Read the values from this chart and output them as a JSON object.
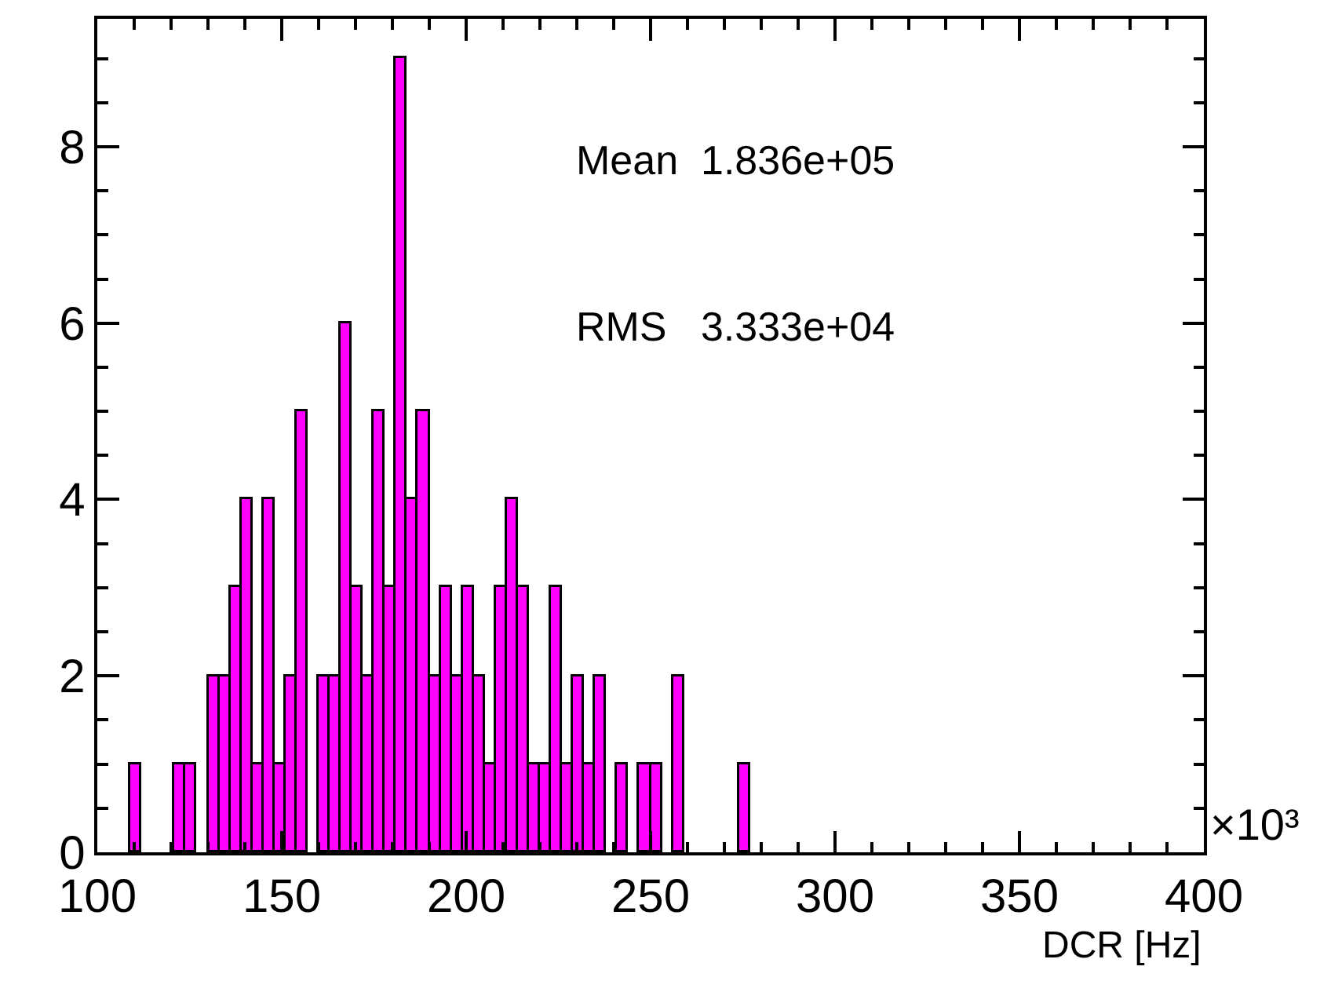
{
  "chart_data": {
    "type": "histogram",
    "xlabel": "DCR [Hz]",
    "bins": [
      100,
      103,
      106,
      109,
      112,
      115,
      118,
      121,
      124,
      127,
      130,
      133,
      136,
      139,
      142,
      145,
      148,
      151,
      154,
      157,
      160,
      163,
      166,
      169,
      172,
      175,
      178,
      181,
      184,
      187,
      190,
      193,
      196,
      199,
      202,
      205,
      208,
      211,
      214,
      217,
      220,
      223,
      226,
      229,
      232,
      235,
      238,
      241,
      244,
      247,
      250,
      253,
      256,
      259,
      262,
      265,
      268,
      271,
      274,
      277,
      280,
      283,
      286,
      289,
      292,
      295,
      298,
      301,
      304,
      307,
      310,
      313,
      316,
      319,
      322,
      325,
      328,
      331,
      334,
      337,
      340,
      343,
      346,
      349,
      352,
      355,
      358,
      361,
      364,
      367,
      370,
      373,
      376,
      379,
      382,
      385,
      388,
      391,
      394,
      397,
      400
    ],
    "values": [
      0,
      0,
      0,
      1,
      0,
      0,
      0,
      1,
      1,
      0,
      2,
      2,
      3,
      4,
      1,
      4,
      1,
      2,
      5,
      0,
      2,
      2,
      6,
      3,
      2,
      5,
      3,
      9,
      4,
      5,
      2,
      3,
      2,
      3,
      2,
      1,
      3,
      4,
      3,
      1,
      1,
      3,
      1,
      2,
      1,
      2,
      0,
      1,
      0,
      1,
      1,
      0,
      2,
      0,
      0,
      0,
      0,
      0,
      1,
      0,
      0,
      0,
      0,
      0,
      0,
      0,
      0,
      0,
      0,
      0,
      0,
      0,
      0,
      0,
      0,
      0,
      0,
      0,
      0,
      0,
      0,
      0,
      0,
      0,
      0,
      0,
      0,
      0,
      0,
      0,
      0,
      0,
      0,
      0,
      0,
      0,
      0,
      0,
      0,
      0
    ],
    "color": "#ff00ff",
    "xlim": [
      100,
      400
    ],
    "xticks": [
      100,
      150,
      200,
      250,
      300,
      350,
      400
    ],
    "ylim": [
      0,
      9.45
    ],
    "yticks": [
      0,
      2,
      4,
      6,
      8
    ],
    "annotations": [
      "Mean  1.836e+05",
      "RMS   3.333e+04",
      "×10³"
    ]
  }
}
